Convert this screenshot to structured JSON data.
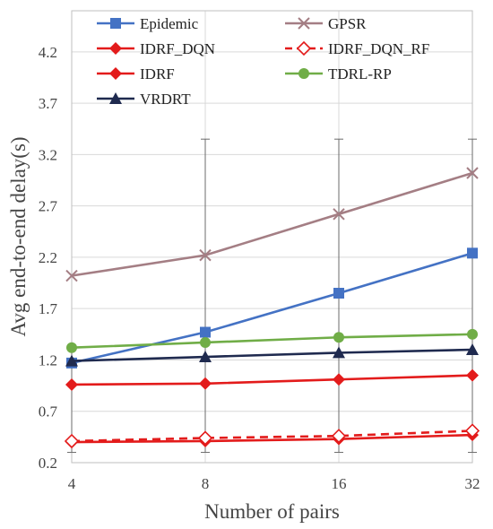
{
  "chart_data": {
    "type": "line",
    "title": "",
    "xlabel": "Number of pairs",
    "ylabel": "Avg end-to-end delay(s)",
    "x": [
      "4",
      "8",
      "16",
      "32"
    ],
    "xlim": [
      4,
      32
    ],
    "ylim": [
      0.2,
      4.6
    ],
    "yticks": [
      "0.2",
      "0.7",
      "1.2",
      "1.7",
      "2.2",
      "2.7",
      "3.2",
      "3.7",
      "4.2"
    ],
    "grid": true,
    "legend": "top",
    "series": [
      {
        "name": "Epidemic",
        "values": [
          1.17,
          1.47,
          1.85,
          2.24
        ],
        "color": "#4472C4",
        "marker": "square",
        "dash": false
      },
      {
        "name": "GPSR",
        "values": [
          2.02,
          2.22,
          2.62,
          3.02
        ],
        "color": "#A47E84",
        "marker": "cross",
        "dash": false
      },
      {
        "name": "IDRF_DQN",
        "values": [
          0.4,
          0.41,
          0.43,
          0.47
        ],
        "color": "#E31B1B",
        "marker": "diamond",
        "dash": false
      },
      {
        "name": "IDRF_DQN_RF",
        "values": [
          0.41,
          0.44,
          0.46,
          0.51
        ],
        "color": "#E31B1B",
        "marker": "diamond-open",
        "dash": true
      },
      {
        "name": "IDRF",
        "values": [
          0.96,
          0.97,
          1.01,
          1.05
        ],
        "color": "#E31B1B",
        "marker": "diamond",
        "dash": false
      },
      {
        "name": "TDRL-RP",
        "values": [
          1.32,
          1.37,
          1.42,
          1.45
        ],
        "color": "#70AD47",
        "marker": "circle",
        "dash": false
      },
      {
        "name": "VRDRT",
        "values": [
          1.19,
          1.23,
          1.27,
          1.3
        ],
        "color": "#1F2A4F",
        "marker": "triangle",
        "dash": false
      }
    ],
    "error_bars": [
      {
        "x_index": 0,
        "low": 0.3,
        "high": 1.3
      },
      {
        "x_index": 1,
        "low": 0.3,
        "high": 3.35
      },
      {
        "x_index": 2,
        "low": 0.3,
        "high": 3.35
      },
      {
        "x_index": 3,
        "low": 0.3,
        "high": 3.35
      }
    ]
  }
}
